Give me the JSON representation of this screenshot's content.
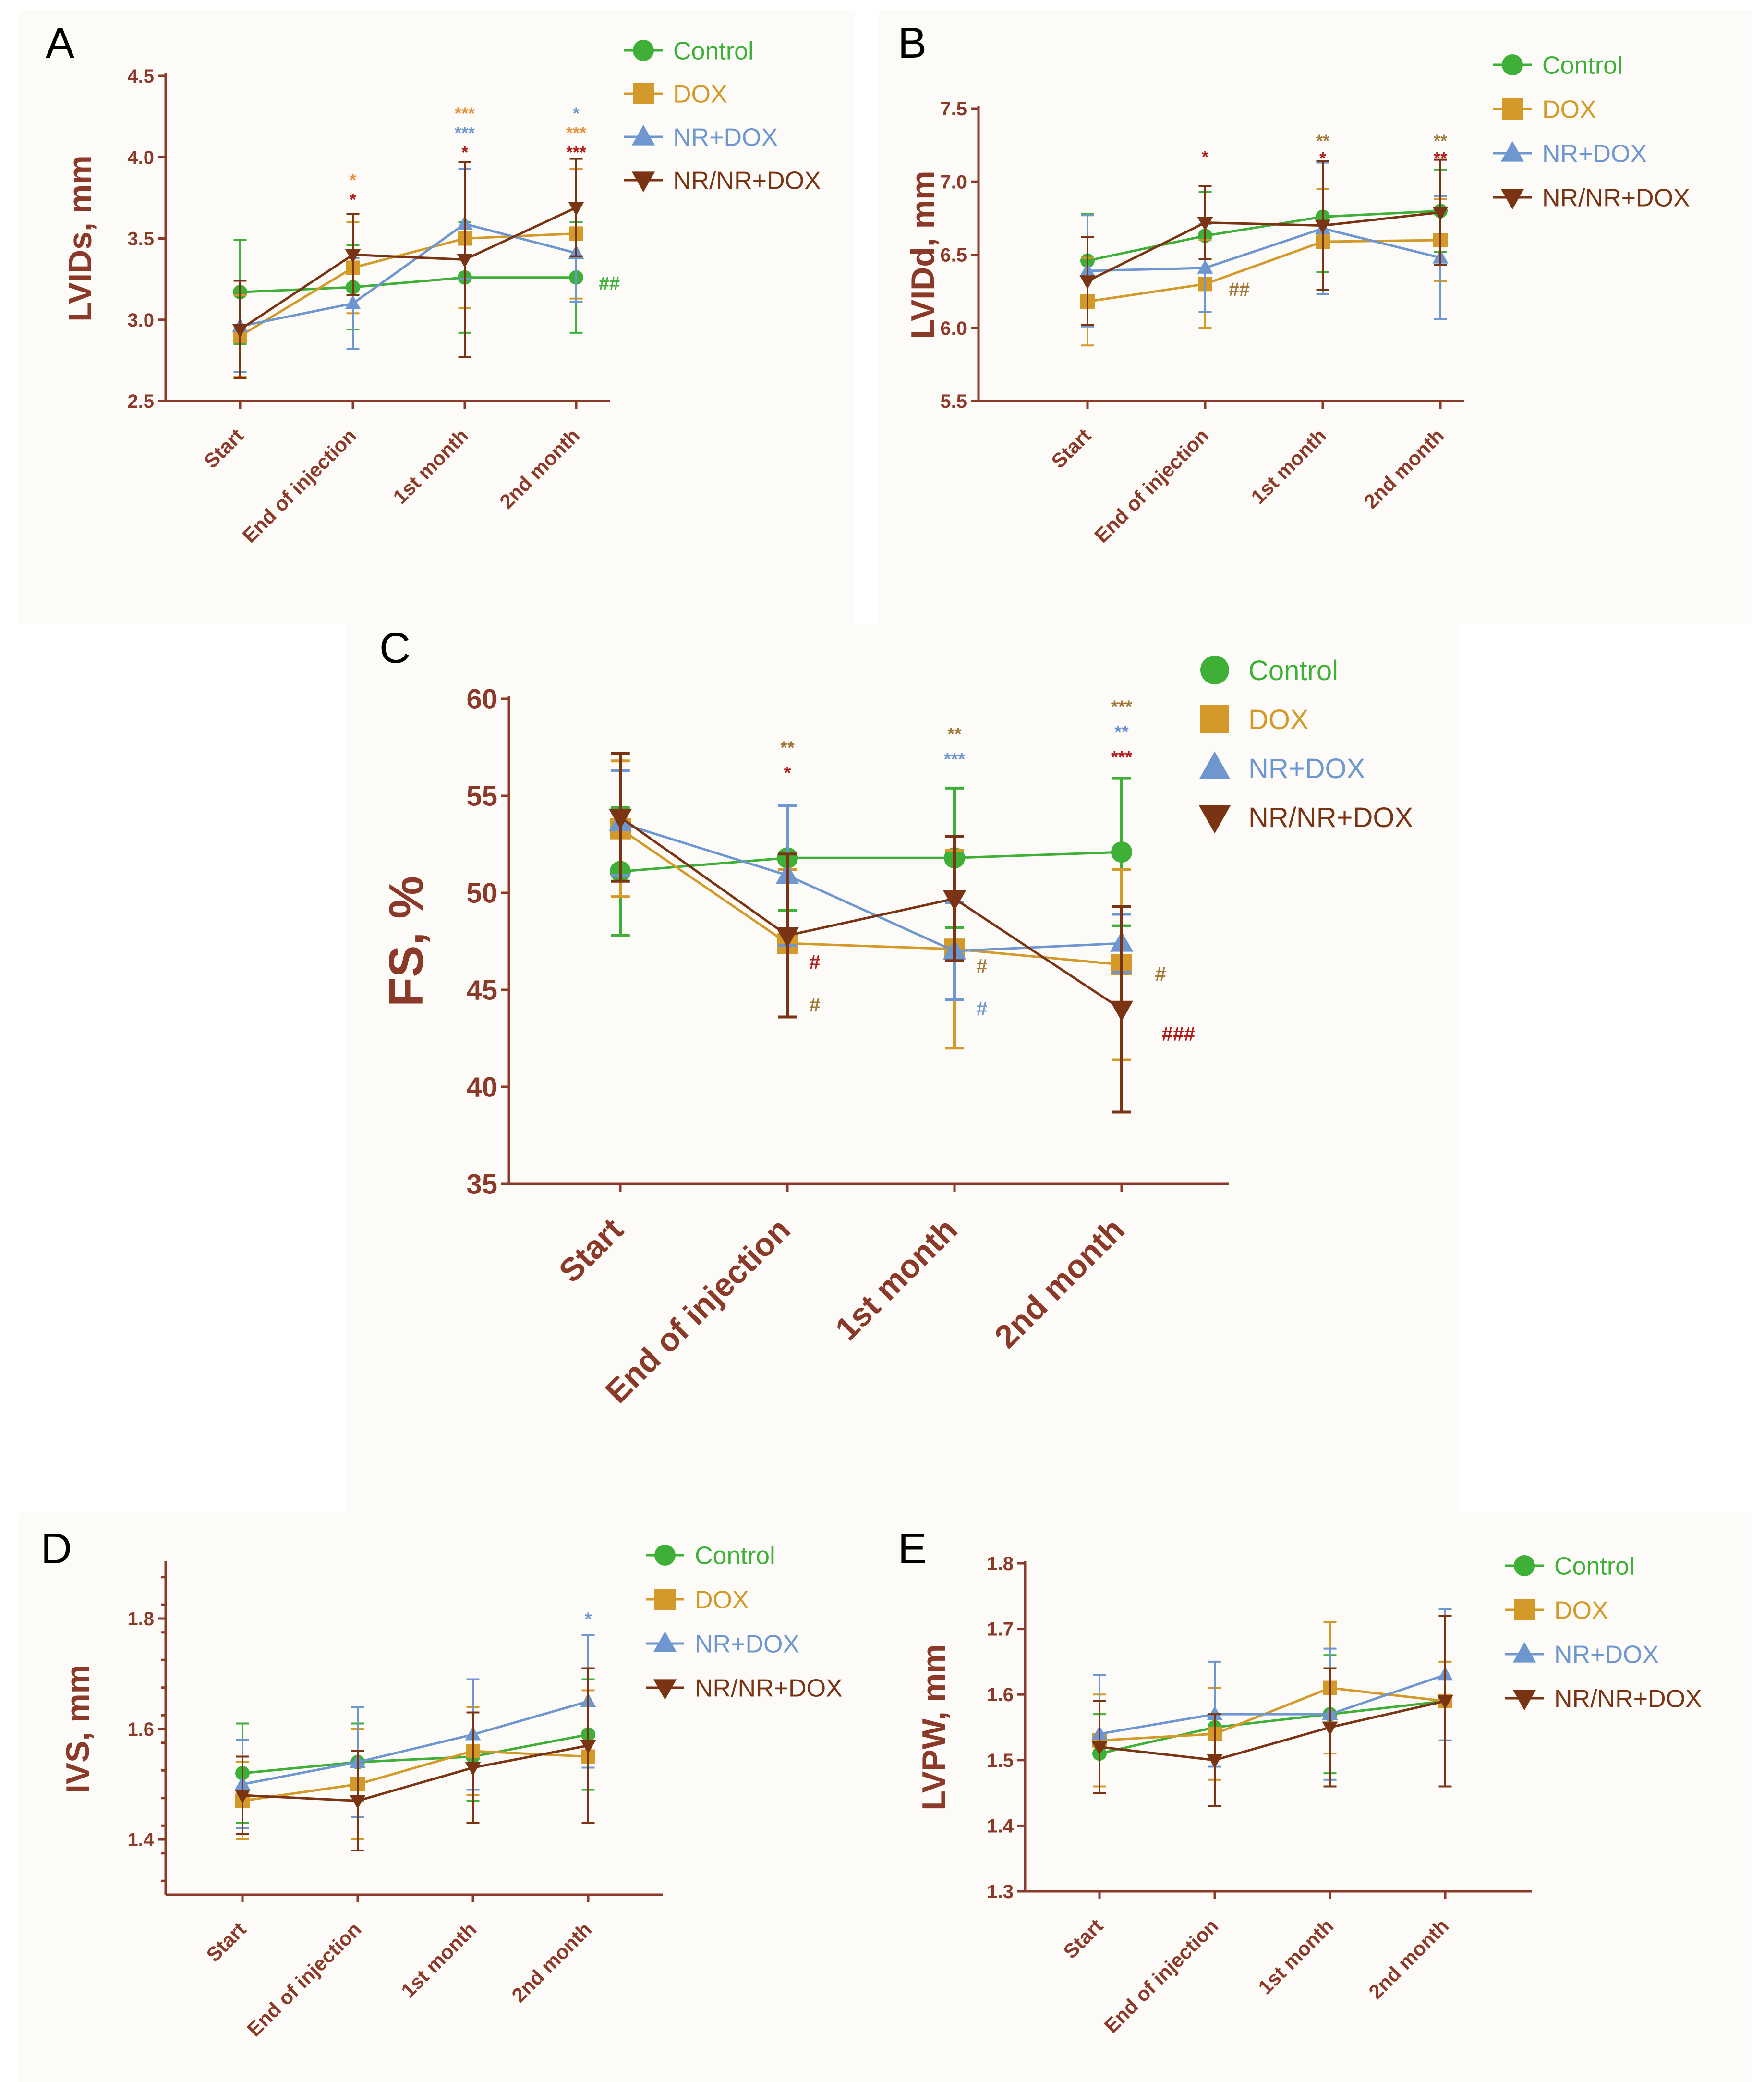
{
  "colors": {
    "axis": "#8b3a2a",
    "Control": "#3fb037",
    "DOX": "#d39a2a",
    "NR+DOX": "#6e97cf",
    "NR/NR+DOX": "#7a3414",
    "sig_orange": "#e8903a",
    "sig_red": "#b01c1c",
    "sig_brown": "#a07838"
  },
  "legend": [
    "Control",
    "DOX",
    "NR+DOX",
    "NR/NR+DOX"
  ],
  "categories": [
    "Start",
    "End of injection",
    "1st month",
    "2nd month"
  ],
  "chart_data": [
    {
      "id": "A",
      "letter": "A",
      "type": "line",
      "ylabel": "LVIDs, mm",
      "ylim": [
        2.5,
        4.5
      ],
      "yticks": [
        "2.5",
        "3.0",
        "3.5",
        "4.0",
        "4.5"
      ],
      "categories": [
        "Start",
        "End of injection",
        "1st month",
        "2nd month"
      ],
      "series": [
        {
          "name": "Control",
          "values": [
            3.17,
            3.2,
            3.26,
            3.26
          ],
          "err": [
            0.32,
            0.26,
            0.34,
            0.34
          ]
        },
        {
          "name": "DOX",
          "values": [
            2.9,
            3.32,
            3.5,
            3.53
          ],
          "err": [
            0.25,
            0.28,
            0.43,
            0.4
          ]
        },
        {
          "name": "NR+DOX",
          "values": [
            2.96,
            3.1,
            3.59,
            3.41
          ],
          "err": [
            0.28,
            0.28,
            0.34,
            0.3
          ]
        },
        {
          "name": "NR/NR+DOX",
          "values": [
            2.94,
            3.4,
            3.37,
            3.69
          ],
          "err": [
            0.3,
            0.25,
            0.6,
            0.3
          ]
        }
      ],
      "annotations": [
        {
          "cat": 1,
          "y": 3.86,
          "text": "*",
          "color": "sig_orange"
        },
        {
          "cat": 1,
          "y": 3.74,
          "text": "*",
          "color": "sig_red"
        },
        {
          "cat": 2,
          "y": 4.27,
          "text": "***",
          "color": "sig_orange"
        },
        {
          "cat": 2,
          "y": 4.15,
          "text": "***",
          "color": "NR+DOX"
        },
        {
          "cat": 2,
          "y": 4.03,
          "text": "*",
          "color": "sig_red"
        },
        {
          "cat": 3,
          "y": 4.27,
          "text": "*",
          "color": "NR+DOX"
        },
        {
          "cat": 3,
          "y": 4.15,
          "text": "***",
          "color": "sig_orange"
        },
        {
          "cat": 3,
          "y": 4.03,
          "text": "***",
          "color": "sig_red"
        },
        {
          "cat": 3.2,
          "y": 3.22,
          "text": "##",
          "color": "Control"
        }
      ]
    },
    {
      "id": "B",
      "letter": "B",
      "type": "line",
      "ylabel": "LVIDd, mm",
      "ylim": [
        5.5,
        7.5
      ],
      "yticks": [
        "5.5",
        "6.0",
        "6.5",
        "7.0",
        "7.5"
      ],
      "categories": [
        "Start",
        "End of injection",
        "1st month",
        "2nd month"
      ],
      "series": [
        {
          "name": "Control",
          "values": [
            6.46,
            6.63,
            6.76,
            6.8
          ],
          "err": [
            0.32,
            0.3,
            0.38,
            0.28
          ]
        },
        {
          "name": "DOX",
          "values": [
            6.18,
            6.3,
            6.59,
            6.6
          ],
          "err": [
            0.3,
            0.3,
            0.36,
            0.28
          ]
        },
        {
          "name": "NR+DOX",
          "values": [
            6.39,
            6.41,
            6.68,
            6.48
          ],
          "err": [
            0.38,
            0.3,
            0.45,
            0.42
          ]
        },
        {
          "name": "NR/NR+DOX",
          "values": [
            6.32,
            6.72,
            6.7,
            6.79
          ],
          "err": [
            0.3,
            0.25,
            0.44,
            0.36
          ]
        }
      ],
      "annotations": [
        {
          "cat": 1,
          "y": 7.17,
          "text": "*",
          "color": "sig_red"
        },
        {
          "cat": 2,
          "y": 7.28,
          "text": "**",
          "color": "sig_brown"
        },
        {
          "cat": 2,
          "y": 7.16,
          "text": "*",
          "color": "sig_red"
        },
        {
          "cat": 3,
          "y": 7.28,
          "text": "**",
          "color": "sig_brown"
        },
        {
          "cat": 3,
          "y": 7.16,
          "text": "**",
          "color": "sig_red"
        },
        {
          "cat": 1.2,
          "y": 6.26,
          "text": "##",
          "color": "sig_brown"
        }
      ]
    },
    {
      "id": "C",
      "letter": "C",
      "type": "line",
      "ylabel": "FS, %",
      "ylim": [
        35,
        60
      ],
      "yticks": [
        "35",
        "40",
        "45",
        "50",
        "55",
        "60"
      ],
      "categories": [
        "Start",
        "End of injection",
        "1st month",
        "2nd month"
      ],
      "series": [
        {
          "name": "Control",
          "values": [
            51.1,
            51.8,
            51.8,
            52.1
          ],
          "err": [
            3.3,
            2.7,
            3.6,
            3.8
          ]
        },
        {
          "name": "DOX",
          "values": [
            53.3,
            47.4,
            47.1,
            46.3
          ],
          "err": [
            3.5,
            3.8,
            5.1,
            4.9
          ]
        },
        {
          "name": "NR+DOX",
          "values": [
            53.6,
            50.9,
            47.0,
            47.4
          ],
          "err": [
            2.7,
            3.6,
            2.5,
            1.5
          ]
        },
        {
          "name": "NR/NR+DOX",
          "values": [
            53.9,
            47.8,
            49.7,
            44.0
          ],
          "err": [
            3.3,
            4.2,
            3.2,
            5.3
          ]
        }
      ],
      "annotations": [
        {
          "cat": 1,
          "y": 57.5,
          "text": "**",
          "color": "sig_brown"
        },
        {
          "cat": 1,
          "y": 56.2,
          "text": "*",
          "color": "sig_red"
        },
        {
          "cat": 2,
          "y": 58.2,
          "text": "**",
          "color": "sig_brown"
        },
        {
          "cat": 2,
          "y": 56.9,
          "text": "***",
          "color": "NR+DOX"
        },
        {
          "cat": 3,
          "y": 59.6,
          "text": "***",
          "color": "sig_brown"
        },
        {
          "cat": 3,
          "y": 58.3,
          "text": "**",
          "color": "NR+DOX"
        },
        {
          "cat": 3,
          "y": 57.0,
          "text": "***",
          "color": "sig_red"
        },
        {
          "cat": 1.13,
          "y": 46.4,
          "text": "#",
          "color": "sig_red"
        },
        {
          "cat": 1.13,
          "y": 44.2,
          "text": "#",
          "color": "sig_brown"
        },
        {
          "cat": 2.13,
          "y": 46.2,
          "text": "#",
          "color": "sig_brown"
        },
        {
          "cat": 2.13,
          "y": 44.0,
          "text": "#",
          "color": "NR+DOX"
        },
        {
          "cat": 3.2,
          "y": 45.8,
          "text": "#",
          "color": "sig_brown"
        },
        {
          "cat": 3.24,
          "y": 42.7,
          "text": "###",
          "color": "sig_red"
        }
      ]
    },
    {
      "id": "D",
      "letter": "D",
      "type": "line",
      "ylabel": "IVS, mm",
      "ylim": [
        1.3,
        1.9
      ],
      "yticks": [
        "1.4",
        "1.6",
        "1.8"
      ],
      "categories": [
        "Start",
        "End of injection",
        "1st month",
        "2nd month"
      ],
      "series": [
        {
          "name": "Control",
          "values": [
            1.52,
            1.54,
            1.55,
            1.59
          ],
          "err": [
            0.09,
            0.07,
            0.08,
            0.1
          ]
        },
        {
          "name": "DOX",
          "values": [
            1.47,
            1.5,
            1.56,
            1.55
          ],
          "err": [
            0.07,
            0.1,
            0.08,
            0.12
          ]
        },
        {
          "name": "NR+DOX",
          "values": [
            1.5,
            1.54,
            1.59,
            1.65
          ],
          "err": [
            0.08,
            0.1,
            0.1,
            0.12
          ]
        },
        {
          "name": "NR/NR+DOX",
          "values": [
            1.48,
            1.47,
            1.53,
            1.57
          ],
          "err": [
            0.07,
            0.09,
            0.1,
            0.14
          ]
        }
      ],
      "annotations": [
        {
          "cat": 3,
          "y": 1.8,
          "text": "*",
          "color": "NR+DOX"
        }
      ]
    },
    {
      "id": "E",
      "letter": "E",
      "type": "line",
      "ylabel": "LVPW, mm",
      "ylim": [
        1.3,
        1.8
      ],
      "yticks": [
        "1.3",
        "1.4",
        "1.5",
        "1.6",
        "1.7",
        "1.8"
      ],
      "categories": [
        "Start",
        "End of injection",
        "1st month",
        "2nd month"
      ],
      "series": [
        {
          "name": "Control",
          "values": [
            1.51,
            1.55,
            1.57,
            1.59
          ],
          "err": [
            0.06,
            0.06,
            0.09,
            0.06
          ]
        },
        {
          "name": "DOX",
          "values": [
            1.53,
            1.54,
            1.61,
            1.59
          ],
          "err": [
            0.07,
            0.07,
            0.1,
            0.06
          ]
        },
        {
          "name": "NR+DOX",
          "values": [
            1.54,
            1.57,
            1.57,
            1.63
          ],
          "err": [
            0.09,
            0.08,
            0.1,
            0.1
          ]
        },
        {
          "name": "NR/NR+DOX",
          "values": [
            1.52,
            1.5,
            1.55,
            1.59
          ],
          "err": [
            0.07,
            0.07,
            0.09,
            0.13
          ]
        }
      ],
      "annotations": []
    }
  ]
}
